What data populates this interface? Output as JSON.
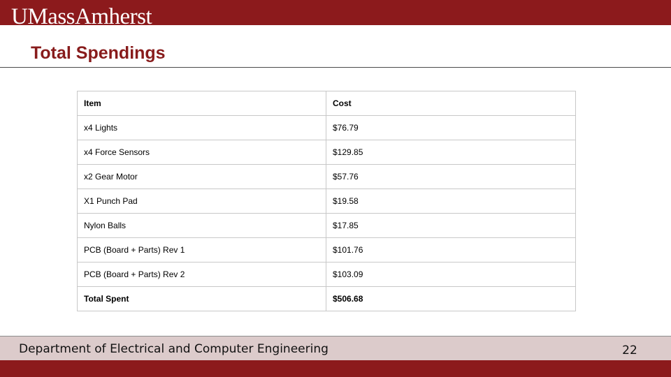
{
  "header": {
    "logo_text": "UMassAmherst",
    "brand_color": "#8c1a1c"
  },
  "slide": {
    "title": "Total Spendings"
  },
  "table": {
    "headers": {
      "item": "Item",
      "cost": "Cost"
    },
    "rows": [
      {
        "item": "x4 Lights",
        "cost": "$76.79"
      },
      {
        "item": "x4 Force Sensors",
        "cost": "$129.85"
      },
      {
        "item": "x2 Gear Motor",
        "cost": "$57.76"
      },
      {
        "item": "X1 Punch Pad",
        "cost": "$19.58"
      },
      {
        "item": "Nylon Balls",
        "cost": "$17.85"
      },
      {
        "item": "PCB (Board + Parts) Rev 1",
        "cost": "$101.76"
      },
      {
        "item": "PCB (Board + Parts) Rev 2",
        "cost": "$103.09"
      }
    ],
    "total": {
      "item": "Total Spent",
      "cost": "$506.68"
    }
  },
  "footer": {
    "department": "Department of Electrical and Computer Engineering",
    "page_number": "22"
  }
}
